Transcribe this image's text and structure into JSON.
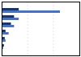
{
  "chart_data": {
    "type": "bar",
    "orientation": "horizontal",
    "categories": [
      null,
      null,
      null,
      null,
      null,
      null
    ],
    "series": [
      {
        "color": "#1d3461",
        "values": [
          22,
          16,
          12,
          5,
          4,
          3
        ]
      },
      {
        "color": "#4472c4",
        "values": [
          75,
          22,
          16,
          9,
          5,
          2
        ]
      }
    ],
    "xlim": [
      0,
      100
    ],
    "xticks": [
      33,
      66
    ],
    "grid": true,
    "tick_labels": false
  }
}
